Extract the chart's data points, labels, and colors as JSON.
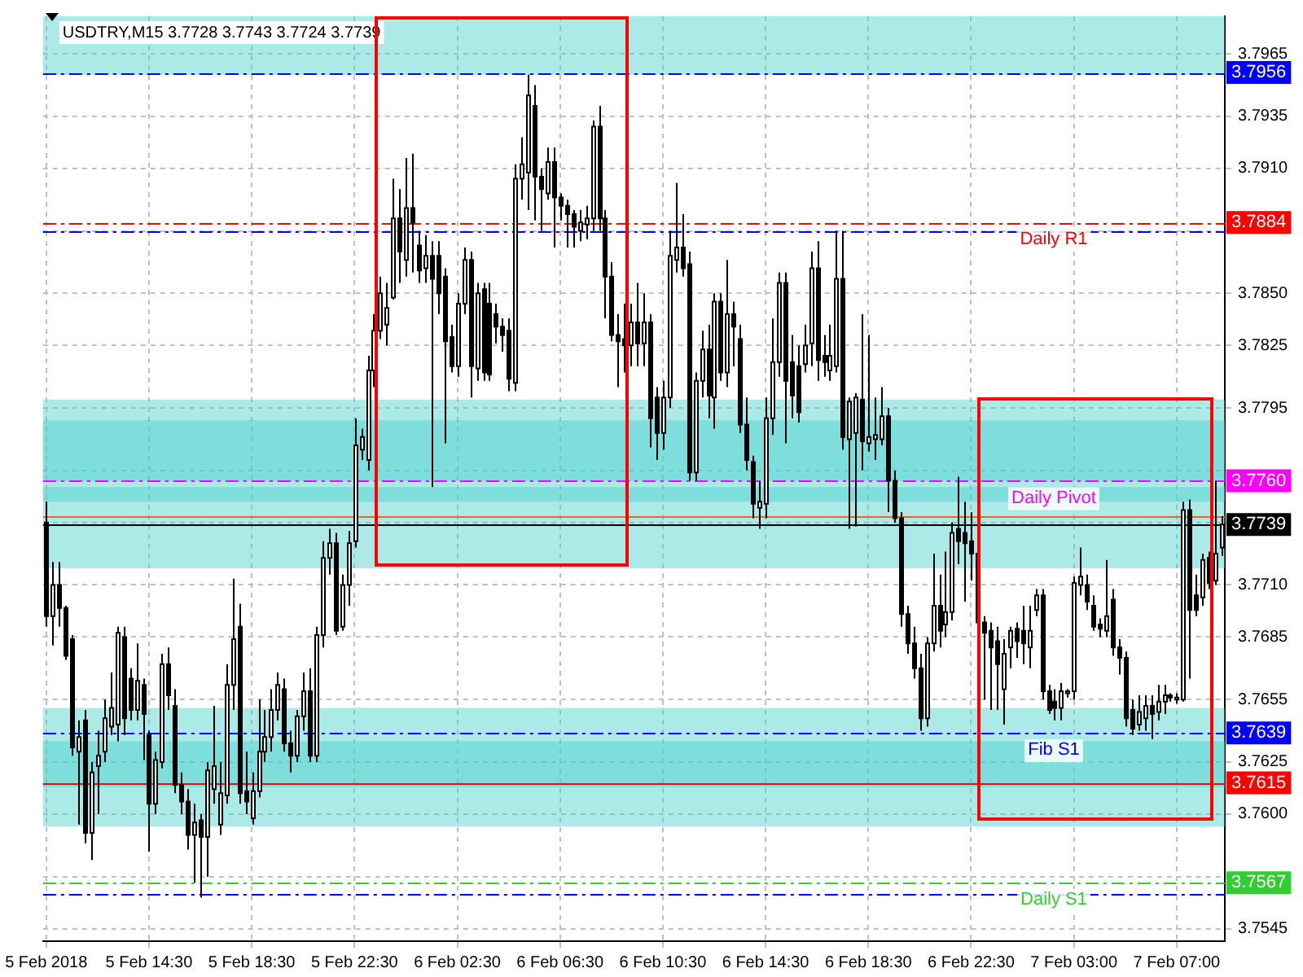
{
  "chart_data": {
    "type": "candlestick",
    "title": "USDTRY,M15 3.7728 3.7743 3.7724 3.7739",
    "categories": [
      "5 Feb 2018",
      null,
      null,
      null,
      null,
      null,
      null,
      null,
      null,
      null,
      null,
      null,
      null,
      null,
      null,
      null,
      "5 Feb 14:30",
      null,
      null,
      null,
      null,
      null,
      null,
      null,
      null,
      null,
      null,
      null,
      null,
      null,
      null,
      null,
      "5 Feb 18:30",
      null,
      null,
      null,
      null,
      null,
      null,
      null,
      null,
      null,
      null,
      null,
      null,
      null,
      null,
      null,
      "5 Feb 22:30",
      null,
      null,
      null,
      null,
      null,
      null,
      null,
      null,
      null,
      null,
      null,
      null,
      null,
      null,
      null,
      "6 Feb 02:30",
      null,
      null,
      null,
      null,
      null,
      null,
      null,
      null,
      null,
      null,
      null,
      null,
      null,
      null,
      null,
      "6 Feb 06:30",
      null,
      null,
      null,
      null,
      null,
      null,
      null,
      null,
      null,
      null,
      null,
      null,
      null,
      null,
      null,
      "6 Feb 10:30",
      null,
      null,
      null,
      null,
      null,
      null,
      null,
      null,
      null,
      null,
      null,
      null,
      null,
      null,
      null,
      "6 Feb 14:30",
      null,
      null,
      null,
      null,
      null,
      null,
      null,
      null,
      null,
      null,
      null,
      null,
      null,
      null,
      null,
      "6 Feb 18:30",
      null,
      null,
      null,
      null,
      null,
      null,
      null,
      null,
      null,
      null,
      null,
      null,
      null,
      null,
      null,
      "6 Feb 22:30",
      null,
      null,
      null,
      null,
      null,
      null,
      null,
      null,
      null,
      null,
      null,
      null,
      null,
      null,
      null,
      "7 Feb 03:00",
      null,
      null,
      null,
      null,
      null,
      null,
      null,
      null,
      null,
      null,
      null,
      null,
      null,
      null,
      null,
      "7 Feb 07:00",
      null,
      null,
      null,
      null,
      null,
      null,
      null
    ],
    "ohlc": [
      [
        3.774,
        3.775,
        3.769,
        3.7695
      ],
      [
        3.7695,
        3.7721,
        3.7681,
        3.771
      ],
      [
        3.771,
        3.7721,
        3.769,
        3.7699
      ],
      [
        3.7699,
        3.77,
        3.7674,
        3.7676
      ],
      [
        3.7684,
        3.7686,
        3.7628,
        3.7632
      ],
      [
        3.763,
        3.7645,
        3.7595,
        3.7637
      ],
      [
        3.7645,
        3.765,
        3.7586,
        3.7591
      ],
      [
        3.7591,
        3.7625,
        3.7578,
        3.762
      ],
      [
        3.7623,
        3.764,
        3.76,
        3.7628
      ],
      [
        3.763,
        3.7655,
        3.7625,
        3.7646
      ],
      [
        3.7642,
        3.7668,
        3.7638,
        3.7651
      ],
      [
        3.7643,
        3.769,
        3.7635,
        3.7687
      ],
      [
        3.7685,
        3.769,
        3.7638,
        3.7646
      ],
      [
        3.7665,
        3.767,
        3.7645,
        3.765
      ],
      [
        3.765,
        3.7682,
        3.7645,
        3.7664
      ],
      [
        3.7662,
        3.7665,
        3.7626,
        3.7648
      ],
      [
        3.7638,
        3.764,
        3.7582,
        3.7605
      ],
      [
        3.7605,
        3.763,
        3.76,
        3.7626
      ],
      [
        3.7625,
        3.7677,
        3.7622,
        3.7672
      ],
      [
        3.7672,
        3.768,
        3.765,
        3.7657
      ],
      [
        3.7652,
        3.766,
        3.761,
        3.7614
      ],
      [
        3.7614,
        3.762,
        3.76,
        3.7606
      ],
      [
        3.7606,
        3.7612,
        3.7583,
        3.759
      ],
      [
        3.759,
        3.7605,
        3.7567,
        3.7596
      ],
      [
        3.7597,
        3.76,
        3.756,
        3.7589
      ],
      [
        3.7589,
        3.7625,
        3.757,
        3.7621
      ],
      [
        3.7612,
        3.7652,
        3.7605,
        3.7623
      ],
      [
        3.7595,
        3.7625,
        3.759,
        3.761
      ],
      [
        3.7609,
        3.7672,
        3.7605,
        3.7662
      ],
      [
        3.7662,
        3.7713,
        3.765,
        3.7684
      ],
      [
        3.769,
        3.7701,
        3.7605,
        3.761
      ],
      [
        3.7611,
        3.763,
        3.76,
        3.7606
      ],
      [
        3.7598,
        3.762,
        3.7595,
        3.7611
      ],
      [
        3.7611,
        3.7655,
        3.7608,
        3.763
      ],
      [
        3.763,
        3.765,
        3.7625,
        3.7637
      ],
      [
        3.7637,
        3.766,
        3.763,
        3.765
      ],
      [
        3.765,
        3.7668,
        3.7645,
        3.7662
      ],
      [
        3.766,
        3.7665,
        3.763,
        3.7634
      ],
      [
        3.7634,
        3.764,
        3.762,
        3.7628
      ],
      [
        3.7628,
        3.765,
        3.7625,
        3.7647
      ],
      [
        3.7647,
        3.7668,
        3.764,
        3.7659
      ],
      [
        3.7659,
        3.767,
        3.7625,
        3.7628
      ],
      [
        3.7628,
        3.769,
        3.7625,
        3.7686
      ],
      [
        3.7686,
        3.7731,
        3.768,
        3.7723
      ],
      [
        3.7723,
        3.7737,
        3.7715,
        3.773
      ],
      [
        3.773,
        3.7735,
        3.7686,
        3.7688
      ],
      [
        3.769,
        3.7715,
        3.7688,
        3.771
      ],
      [
        3.771,
        3.7736,
        3.77,
        3.773
      ],
      [
        3.7731,
        3.779,
        3.7728,
        3.7777
      ],
      [
        3.7775,
        3.7785,
        3.777,
        3.7781
      ],
      [
        3.777,
        3.782,
        3.7765,
        3.7813
      ],
      [
        3.7813,
        3.784,
        3.7805,
        3.7832
      ],
      [
        3.7832,
        3.7858,
        3.7828,
        3.785
      ],
      [
        3.7835,
        3.7855,
        3.7825,
        3.7843
      ],
      [
        3.7848,
        3.7905,
        3.7847,
        3.7886
      ],
      [
        3.7886,
        3.79,
        3.7855,
        3.787
      ],
      [
        3.7866,
        3.7915,
        3.7858,
        3.7891
      ],
      [
        3.7891,
        3.7917,
        3.786,
        3.7884
      ],
      [
        3.7873,
        3.788,
        3.7855,
        3.7861
      ],
      [
        3.7862,
        3.7878,
        3.7855,
        3.7868
      ],
      [
        3.7868,
        3.7875,
        3.7757,
        3.7857
      ],
      [
        3.7868,
        3.7875,
        3.784,
        3.785
      ],
      [
        3.7858,
        3.7862,
        3.7778,
        3.7827
      ],
      [
        3.7829,
        3.7835,
        3.7812,
        3.7815
      ],
      [
        3.7815,
        3.785,
        3.781,
        3.7845
      ],
      [
        3.7845,
        3.7872,
        3.784,
        3.7866
      ],
      [
        3.7866,
        3.787,
        3.78,
        3.7815
      ],
      [
        3.7814,
        3.7855,
        3.7808,
        3.785
      ],
      [
        3.7852,
        3.7855,
        3.7808,
        3.7812
      ],
      [
        3.7845,
        3.7855,
        3.7808,
        3.7811
      ],
      [
        3.784,
        3.7845,
        3.7826,
        3.7834
      ],
      [
        3.7834,
        3.7838,
        3.7822,
        3.783
      ],
      [
        3.7832,
        3.7838,
        3.7803,
        3.7809
      ],
      [
        3.7807,
        3.7912,
        3.7803,
        3.7905
      ],
      [
        3.7905,
        3.7925,
        3.7895,
        3.7912
      ],
      [
        3.7908,
        3.7955,
        3.789,
        3.7945
      ],
      [
        3.794,
        3.795,
        3.7885,
        3.7906
      ],
      [
        3.7906,
        3.791,
        3.788,
        3.79
      ],
      [
        3.7898,
        3.792,
        3.7895,
        3.7913
      ],
      [
        3.7913,
        3.792,
        3.7872,
        3.7896
      ],
      [
        3.7896,
        3.7898,
        3.7885,
        3.7892
      ],
      [
        3.7892,
        3.7895,
        3.7872,
        3.7888
      ],
      [
        3.7888,
        3.789,
        3.7872,
        3.7882
      ],
      [
        3.788,
        3.789,
        3.7875,
        3.7884
      ],
      [
        3.7883,
        3.7892,
        3.7876,
        3.7886
      ],
      [
        3.7886,
        3.7933,
        3.788,
        3.793
      ],
      [
        3.793,
        3.794,
        3.788,
        3.7886
      ],
      [
        3.7886,
        3.789,
        3.7838,
        3.7858
      ],
      [
        3.7858,
        3.7865,
        3.7827,
        3.783
      ],
      [
        3.783,
        3.784,
        3.7805,
        3.7827
      ],
      [
        3.7828,
        3.7845,
        3.7812,
        3.7825
      ],
      [
        3.7825,
        3.7845,
        3.7815,
        3.7836
      ],
      [
        3.7836,
        3.7855,
        3.7815,
        3.7826
      ],
      [
        3.7826,
        3.785,
        3.7815,
        3.7836
      ],
      [
        3.7836,
        3.784,
        3.7776,
        3.779
      ],
      [
        3.78,
        3.7805,
        3.777,
        3.7783
      ],
      [
        3.7783,
        3.7808,
        3.7775,
        3.78
      ],
      [
        3.78,
        3.788,
        3.7795,
        3.7868
      ],
      [
        3.7866,
        3.7903,
        3.786,
        3.7872
      ],
      [
        3.7872,
        3.7888,
        3.7858,
        3.7862
      ],
      [
        3.7864,
        3.787,
        3.776,
        3.7764
      ],
      [
        3.7764,
        3.7812,
        3.776,
        3.7808
      ],
      [
        3.7808,
        3.7832,
        3.78,
        3.7823
      ],
      [
        3.7823,
        3.7835,
        3.779,
        3.7801
      ],
      [
        3.78,
        3.785,
        3.7785,
        3.7846
      ],
      [
        3.7846,
        3.785,
        3.7808,
        3.7812
      ],
      [
        3.7812,
        3.7866,
        3.7805,
        3.784
      ],
      [
        3.784,
        3.7846,
        3.7815,
        3.7834
      ],
      [
        3.7828,
        3.7835,
        3.7783,
        3.7787
      ],
      [
        3.7787,
        3.78,
        3.7765,
        3.777
      ],
      [
        3.7769,
        3.7772,
        3.7742,
        3.7749
      ],
      [
        3.7747,
        3.776,
        3.7737,
        3.775
      ],
      [
        3.7749,
        3.78,
        3.7742,
        3.779
      ],
      [
        3.779,
        3.7838,
        3.7782,
        3.7817
      ],
      [
        3.7817,
        3.786,
        3.781,
        3.7855
      ],
      [
        3.7855,
        3.786,
        3.7778,
        3.7808
      ],
      [
        3.7817,
        3.783,
        3.779,
        3.7801
      ],
      [
        3.7815,
        3.7825,
        3.7788,
        3.7793
      ],
      [
        3.7816,
        3.7835,
        3.7812,
        3.7825
      ],
      [
        3.7826,
        3.787,
        3.7815,
        3.7862
      ],
      [
        3.7862,
        3.7875,
        3.7808,
        3.7818
      ],
      [
        3.782,
        3.783,
        3.781,
        3.7817
      ],
      [
        3.7813,
        3.7835,
        3.7808,
        3.782
      ],
      [
        3.7815,
        3.788,
        3.7812,
        3.7857
      ],
      [
        3.7857,
        3.788,
        3.7775,
        3.7781
      ],
      [
        3.778,
        3.78,
        3.7737,
        3.7798
      ],
      [
        3.7783,
        3.7802,
        3.7738,
        3.78
      ],
      [
        3.7799,
        3.784,
        3.7765,
        3.7779
      ],
      [
        3.7778,
        3.783,
        3.7774,
        3.7781
      ],
      [
        3.778,
        3.78,
        3.777,
        3.7782
      ],
      [
        3.778,
        3.7805,
        3.7777,
        3.7791
      ],
      [
        3.7791,
        3.7795,
        3.7745,
        3.776
      ],
      [
        3.776,
        3.7765,
        3.774,
        3.7742
      ],
      [
        3.7742,
        3.7745,
        3.769,
        3.7696
      ],
      [
        3.7696,
        3.77,
        3.7677,
        3.7682
      ],
      [
        3.7682,
        3.769,
        3.7665,
        3.767
      ],
      [
        3.767,
        3.7677,
        3.764,
        3.7646
      ],
      [
        3.7646,
        3.7685,
        3.7642,
        3.7682
      ],
      [
        3.7682,
        3.7725,
        3.7678,
        3.77
      ],
      [
        3.77,
        3.7715,
        3.768,
        3.7688
      ],
      [
        3.7691,
        3.7726,
        3.7685,
        3.7697
      ],
      [
        3.7697,
        3.774,
        3.7693,
        3.7735
      ],
      [
        3.7737,
        3.7762,
        3.772,
        3.7731
      ],
      [
        3.7735,
        3.775,
        3.7702,
        3.773
      ],
      [
        3.7731,
        3.7745,
        3.7712,
        3.7725
      ],
      [
        3.7725,
        3.7728,
        3.769,
        3.7692
      ],
      [
        3.7692,
        3.7695,
        3.7655,
        3.7687
      ],
      [
        3.7688,
        3.7692,
        3.765,
        3.768
      ],
      [
        3.7683,
        3.769,
        3.765,
        3.7672
      ],
      [
        3.766,
        3.7684,
        3.7643,
        3.7677
      ],
      [
        3.768,
        3.769,
        3.767,
        3.7688
      ],
      [
        3.7689,
        3.7692,
        3.7675,
        3.7683
      ],
      [
        3.7688,
        3.77,
        3.7672,
        3.7682
      ],
      [
        3.768,
        3.77,
        3.767,
        3.7688
      ],
      [
        3.7698,
        3.7708,
        3.7695,
        3.7705
      ],
      [
        3.7705,
        3.7708,
        3.7655,
        3.7659
      ],
      [
        3.7659,
        3.7662,
        3.7648,
        3.765
      ],
      [
        3.7654,
        3.766,
        3.7645,
        3.7651
      ],
      [
        3.7651,
        3.7663,
        3.7645,
        3.7659
      ],
      [
        3.7658,
        3.766,
        3.7656,
        3.7659
      ],
      [
        3.7659,
        3.7714,
        3.7655,
        3.7711
      ],
      [
        3.771,
        3.7728,
        3.7705,
        3.7714
      ],
      [
        3.771,
        3.7715,
        3.7698,
        3.7702
      ],
      [
        3.77,
        3.7705,
        3.7688,
        3.769
      ],
      [
        3.7691,
        3.7694,
        3.7685,
        3.7689
      ],
      [
        3.7688,
        3.7722,
        3.7685,
        3.7695
      ],
      [
        3.7703,
        3.7708,
        3.7676,
        3.768
      ],
      [
        3.768,
        3.7684,
        3.7667,
        3.7675
      ],
      [
        3.7675,
        3.7678,
        3.7642,
        3.7646
      ],
      [
        3.765,
        3.7655,
        3.7638,
        3.7641
      ],
      [
        3.7643,
        3.7657,
        3.764,
        3.7649
      ],
      [
        3.7646,
        3.7657,
        3.764,
        3.7652
      ],
      [
        3.7652,
        3.7657,
        3.7636,
        3.7648
      ],
      [
        3.7649,
        3.7662,
        3.7645,
        3.7654
      ],
      [
        3.7654,
        3.7662,
        3.7648,
        3.7657
      ],
      [
        3.7657,
        3.7658,
        3.7654,
        3.7656
      ],
      [
        3.7655,
        3.7658,
        3.7653,
        3.7656
      ],
      [
        3.7655,
        3.775,
        3.7654,
        3.7746
      ],
      [
        3.7746,
        3.7751,
        3.7665,
        3.7698
      ],
      [
        3.7705,
        3.7715,
        3.7695,
        3.7698
      ],
      [
        3.7704,
        3.7725,
        3.77,
        3.7722
      ],
      [
        3.7723,
        3.7726,
        3.7708,
        3.7711
      ],
      [
        3.7712,
        3.776,
        3.771,
        3.7725
      ],
      [
        3.7728,
        3.7743,
        3.7724,
        3.7739
      ]
    ],
    "ylim": [
      3.7539,
      3.7983
    ],
    "yticks": [
      3.7965,
      3.7935,
      {
        "value": 3.791,
        "label": "3.7910"
      },
      {
        "value": 3.788,
        "label": null
      },
      {
        "value": 3.785,
        "label": "3.7850"
      },
      3.7825,
      3.7795,
      {
        "value": 3.7765,
        "label": null
      },
      {
        "value": 3.774,
        "label": null
      },
      {
        "value": 3.771,
        "label": "3.7710"
      },
      3.7685,
      3.7655,
      3.7625,
      {
        "value": 3.76,
        "label": "3.7600"
      },
      {
        "value": 3.757,
        "label": null
      },
      3.7545
    ],
    "grid": true,
    "ref_lines": [
      {
        "axis": "y",
        "value": 3.7956,
        "label": "3.7956",
        "color": "#0000ff",
        "line_style": "dashed"
      },
      {
        "axis": "y",
        "value": 3.7884,
        "label": "3.7884",
        "color": "#ff0000",
        "line_style": "dashed"
      },
      {
        "axis": "y",
        "value": 3.788,
        "color": "#0000ff",
        "line_style": "dashed"
      },
      {
        "axis": "y",
        "value": 3.776,
        "label": "3.7760",
        "color": "#ff00ff",
        "line_style": "dashed"
      },
      {
        "axis": "y",
        "value": 3.7743,
        "color": "#ff6020",
        "line_style": "solid"
      },
      {
        "axis": "y",
        "value": 3.7739,
        "label": "3.7739",
        "color": "#000000",
        "line_style": "solid"
      },
      {
        "axis": "y",
        "value": 3.7639,
        "label": "3.7639",
        "color": "#0000ff",
        "line_style": "dashed"
      },
      {
        "axis": "y",
        "value": 3.7615,
        "label": "3.7615",
        "color": "#ff0000",
        "line_style": "solid"
      },
      {
        "axis": "y",
        "value": 3.7567,
        "label": "3.7567",
        "color": "#32cd32",
        "line_style": "dashed"
      },
      {
        "axis": "y",
        "value": 3.7562,
        "color": "#0000ff",
        "line_style": "dashed"
      }
    ],
    "bands": [
      {
        "axis": "y",
        "from": 3.7955,
        "to": 3.7983,
        "color": "#48d1cc"
      },
      {
        "axis": "y",
        "from": 3.776,
        "to": 3.7799,
        "color": "#48d1cc"
      },
      {
        "axis": "y",
        "from": 3.775,
        "to": 3.7789,
        "color": "#48d1cc"
      },
      {
        "axis": "y",
        "from": 3.7718,
        "to": 3.7757,
        "color": "#48d1cc"
      },
      {
        "axis": "y",
        "from": 3.7613,
        "to": 3.7651,
        "color": "#48d1cc"
      },
      {
        "axis": "y",
        "from": 3.7594,
        "to": 3.7635,
        "color": "#48d1cc"
      }
    ],
    "annotations": [
      {
        "text": "Daily R1",
        "y": 3.7884
      },
      {
        "text": "Daily Pivot",
        "y": 3.776
      },
      {
        "text": "Fib S1",
        "y": 3.7639
      },
      {
        "text": "Daily S1",
        "y": 3.7567
      }
    ]
  }
}
